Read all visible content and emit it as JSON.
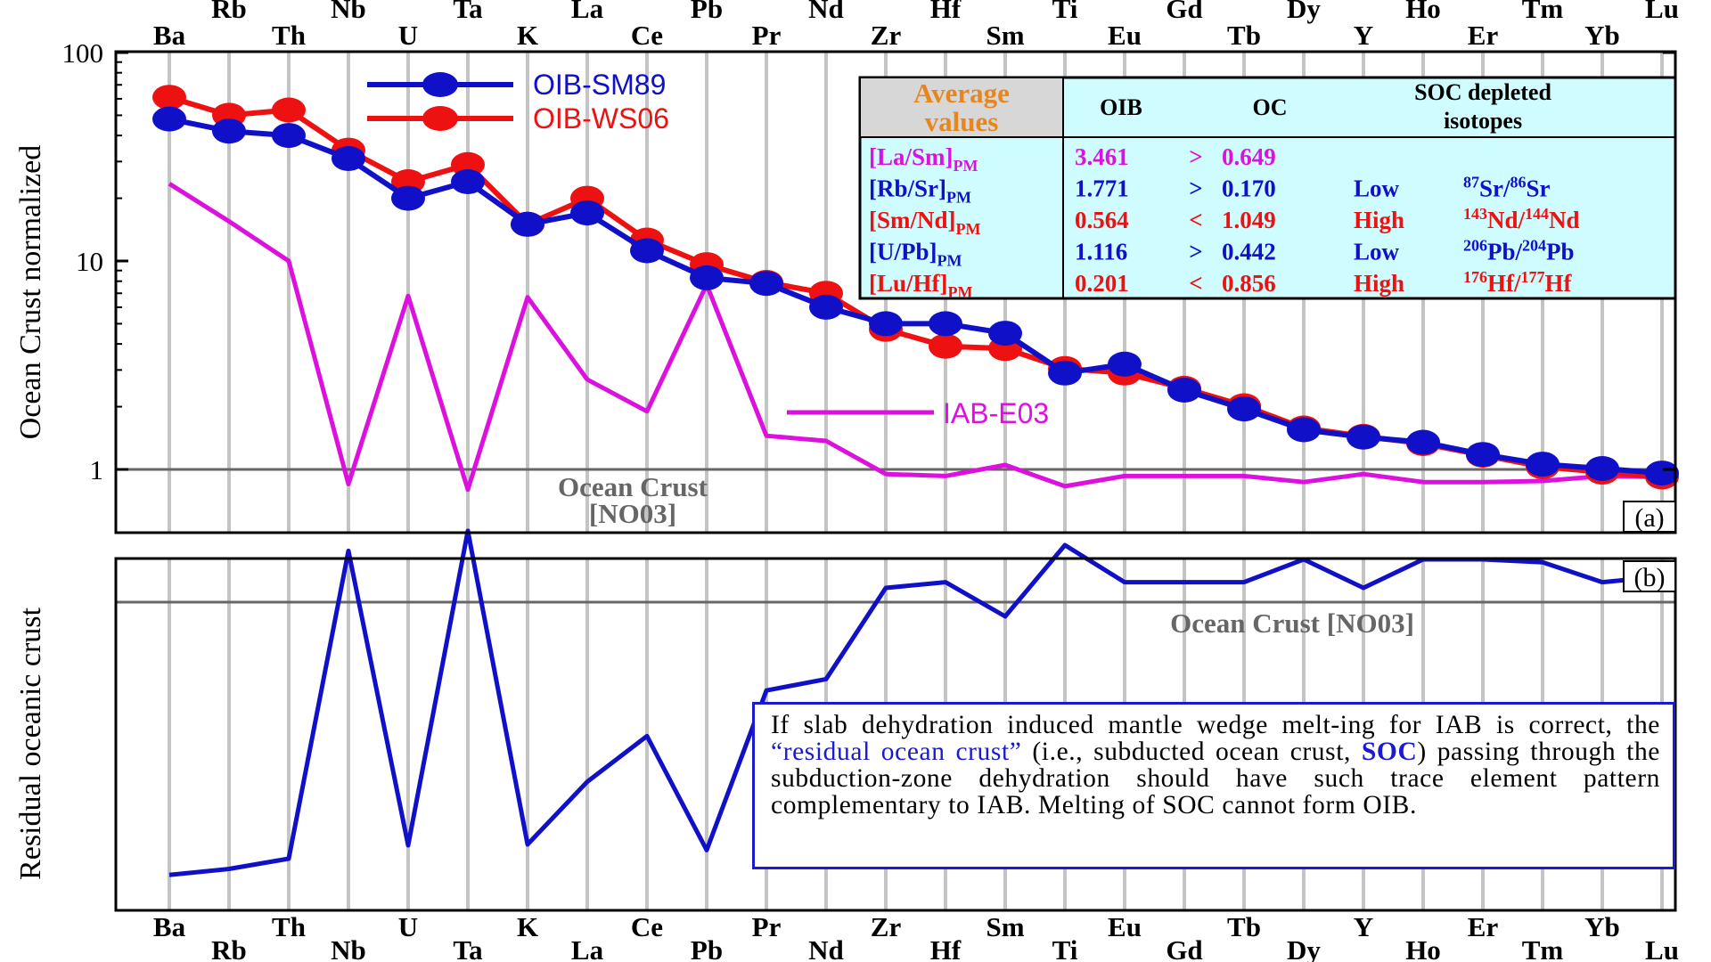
{
  "chart_data": [
    {
      "panel": "(a)",
      "type": "line",
      "yscale": "log",
      "ylim": [
        0.5,
        100
      ],
      "yticks": [
        1,
        10,
        100
      ],
      "ylabel": "Ocean Crust normalized",
      "categories": [
        "Ba",
        "Rb",
        "Th",
        "Nb",
        "U",
        "Ta",
        "K",
        "La",
        "Ce",
        "Pb",
        "Pr",
        "Nd",
        "Zr",
        "Hf",
        "Sm",
        "Ti",
        "Eu",
        "Gd",
        "Tb",
        "Dy",
        "Y",
        "Ho",
        "Er",
        "Tm",
        "Yb",
        "Lu"
      ],
      "series": [
        {
          "name": "OIB-SM89",
          "color": "#1010c8",
          "markers": true,
          "values": [
            48,
            42,
            40,
            31,
            20,
            24,
            15,
            17,
            11.2,
            8.3,
            7.8,
            6,
            5,
            5,
            4.5,
            2.9,
            3.2,
            2.4,
            1.95,
            1.55,
            1.43,
            1.35,
            1.18,
            1.06,
            1.01,
            0.96
          ]
        },
        {
          "name": "OIB-WS06",
          "color": "#ee1111",
          "markers": true,
          "values": [
            61,
            50,
            53,
            34,
            24,
            29,
            15,
            20,
            12.6,
            9.6,
            7.9,
            7,
            4.7,
            3.9,
            3.8,
            3.05,
            2.9,
            2.45,
            2.02,
            1.58,
            1.44,
            1.33,
            1.17,
            1.03,
            0.97,
            0.92
          ]
        },
        {
          "name": "IAB-E03",
          "color": "#dd11dd",
          "markers": false,
          "values": [
            23.5,
            15.5,
            10,
            0.85,
            6.8,
            0.8,
            6.7,
            2.7,
            1.9,
            7.7,
            1.45,
            1.37,
            0.95,
            0.93,
            1.05,
            0.83,
            0.93,
            0.93,
            0.93,
            0.87,
            0.95,
            0.87,
            0.87,
            0.88,
            0.93,
            0.92
          ]
        }
      ],
      "reference_line": {
        "value": 1,
        "label_line1": "Ocean Crust",
        "label_line2": "[NO03]"
      },
      "legend_position": "top-left"
    },
    {
      "panel": "(b)",
      "type": "line",
      "ylabel": "Residual oceanic crust",
      "categories": [
        "Ba",
        "Rb",
        "Th",
        "Nb",
        "U",
        "Ta",
        "K",
        "La",
        "Ce",
        "Pb",
        "Pr",
        "Nd",
        "Zr",
        "Hf",
        "Sm",
        "Ti",
        "Eu",
        "Gd",
        "Tb",
        "Dy",
        "Y",
        "Ho",
        "Er",
        "Tm",
        "Yb",
        "Lu"
      ],
      "series": [
        {
          "name": "Residual oceanic crust",
          "color": "#1010c8",
          "values": [
            0.043,
            0.064,
            0.1,
            1.18,
            0.147,
            1.25,
            0.15,
            0.37,
            0.53,
            0.13,
            0.69,
            0.73,
            1.05,
            1.07,
            0.95,
            1.2,
            1.07,
            1.07,
            1.07,
            1.15,
            1.05,
            1.15,
            1.15,
            1.14,
            1.07,
            1.09
          ]
        }
      ],
      "reference_line": {
        "value": 1,
        "label": "Ocean Crust [NO03]"
      }
    }
  ],
  "top_axis": {
    "upper": [
      "Rb",
      "Nb",
      "Ta",
      "La",
      "Pb",
      "Nd",
      "Hf",
      "Ti",
      "Gd",
      "Dy",
      "Ho",
      "Tm",
      "Lu"
    ],
    "lower": [
      "Ba",
      "Th",
      "U",
      "K",
      "Ce",
      "Pr",
      "Zr",
      "Sm",
      "Eu",
      "Tb",
      "Y",
      "Er",
      "Yb"
    ]
  },
  "bottom_axis": {
    "upper": [
      "Ba",
      "Th",
      "U",
      "K",
      "Ce",
      "Pr",
      "Zr",
      "Sm",
      "Eu",
      "Tb",
      "Y",
      "Er",
      "Yb"
    ],
    "lower": [
      "Rb",
      "Nb",
      "Ta",
      "La",
      "Pb",
      "Nd",
      "Hf",
      "Ti",
      "Gd",
      "Dy",
      "Ho",
      "Tm",
      "Lu"
    ]
  },
  "table": {
    "header_title_line1": "Average",
    "header_title_line2": "values",
    "col_oib": "OIB",
    "col_oc": "OC",
    "col_soc_line1": "SOC depleted",
    "col_soc_line2": "isotopes",
    "rows": [
      {
        "ratio_main": "[La/Sm]",
        "ratio_sub": "PM",
        "oib": "3.461",
        "cmp": ">",
        "oc": "0.649",
        "level": "",
        "iso": [],
        "ratio_color": "#dd11dd",
        "val_color": "#dd11dd"
      },
      {
        "ratio_main": "[Rb/Sr]",
        "ratio_sub": "PM",
        "oib": "1.771",
        "cmp": ">",
        "oc": "0.170",
        "level": "Low",
        "iso": [
          [
            "87",
            "Sr"
          ],
          [
            "86",
            "Sr"
          ]
        ],
        "ratio_color": "#1010c8",
        "val_color": "#1010c8"
      },
      {
        "ratio_main": "[Sm/Nd]",
        "ratio_sub": "PM",
        "oib": "0.564",
        "cmp": "<",
        "oc": "1.049",
        "level": "High",
        "iso": [
          [
            "143",
            "Nd"
          ],
          [
            "144",
            "Nd"
          ]
        ],
        "ratio_color": "#ee1111",
        "val_color": "#ee1111"
      },
      {
        "ratio_main": "[U/Pb]",
        "ratio_sub": "PM",
        "oib": "1.116",
        "cmp": ">",
        "oc": "0.442",
        "level": "Low",
        "iso": [
          [
            "206",
            "Pb"
          ],
          [
            "204",
            "Pb"
          ]
        ],
        "ratio_color": "#1010c8",
        "val_color": "#1010c8"
      },
      {
        "ratio_main": "[Lu/Hf]",
        "ratio_sub": "PM",
        "oib": "0.201",
        "cmp": "<",
        "oc": "0.856",
        "level": "High",
        "iso": [
          [
            "176",
            "Hf"
          ],
          [
            "177",
            "Hf"
          ]
        ],
        "ratio_color": "#ee1111",
        "val_color": "#ee1111"
      }
    ]
  },
  "note": {
    "part1": "If slab dehydration induced mantle wedge melt-ing for IAB is correct, the ",
    "quote": "“residual ocean crust”",
    "part2": " (i.e., subducted ocean crust, ",
    "soc": "SOC",
    "part3": ") passing through the subduction-zone dehydration should have such trace element pattern complementary to IAB. Melting of SOC cannot form OIB."
  },
  "colors": {
    "blue": "#1010c8",
    "red": "#ee1111",
    "magenta": "#dd11dd",
    "grid": "#c4c4c4",
    "refline": "#666666",
    "table_bg": "#cffcff",
    "table_header_bg": "#d7d7d7",
    "orange": "#e8861c"
  }
}
